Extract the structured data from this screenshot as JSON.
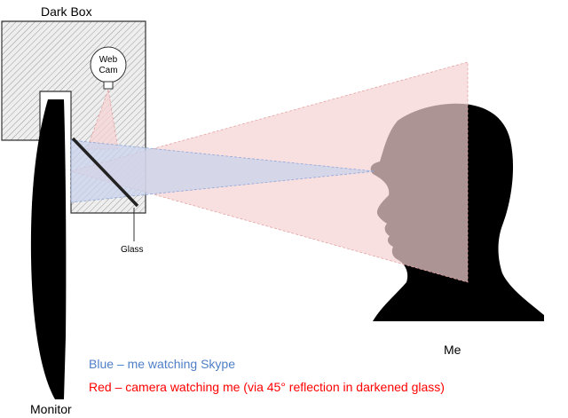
{
  "labels": {
    "dark_box": "Dark Box",
    "webcam_line1": "Web",
    "webcam_line2": "Cam",
    "glass": "Glass",
    "me": "Me",
    "monitor": "Monitor"
  },
  "legend": {
    "blue": "Blue – me watching Skype",
    "red": "Red – camera watching me (via 45° reflection in darkened glass)"
  },
  "colors": {
    "blue_text": "#4f7fc8",
    "red_text": "#ff0000",
    "blue_beam": "#c9d3ec",
    "red_beam": "#f6d3d3",
    "box_fill": "#e6e6e6",
    "silhouette": "#000000"
  }
}
